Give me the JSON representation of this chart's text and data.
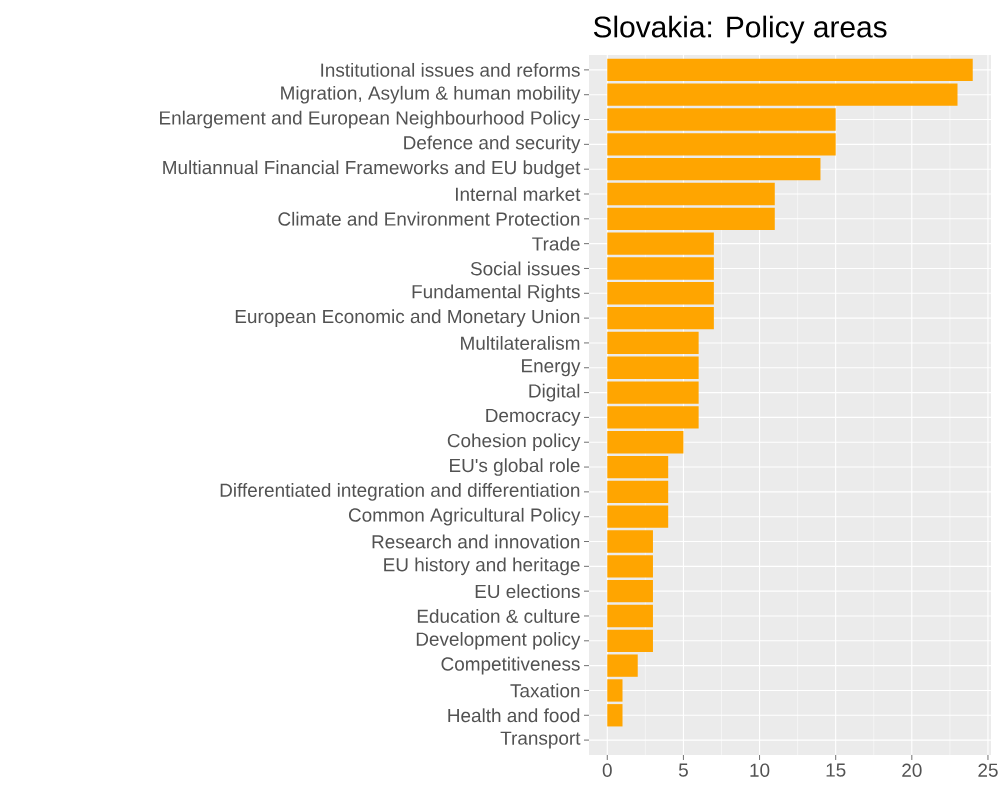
{
  "chart_data": {
    "type": "bar",
    "orientation": "horizontal",
    "title": "Slovakia: Policy areas",
    "categories": [
      "Institutional issues and reforms",
      "Migration, Asylum & human mobility",
      "Enlargement and European Neighbourhood Policy",
      "Defence and security",
      "Multiannual Financial Frameworks and EU budget",
      "Internal market",
      "Climate and Environment Protection",
      "Trade",
      "Social issues",
      "Fundamental Rights",
      "European Economic and Monetary Union",
      "Multilateralism",
      "Energy",
      "Digital",
      "Democracy",
      "Cohesion policy",
      "EU's global role",
      "Differentiated integration and differentiation",
      "Common Agricultural Policy",
      "Research and innovation",
      "EU history and heritage",
      "EU elections",
      "Education & culture",
      "Development policy",
      "Competitiveness",
      "Taxation",
      "Health and food",
      "Transport"
    ],
    "values": [
      24,
      23,
      15,
      15,
      14,
      11,
      11,
      7,
      7,
      7,
      7,
      6,
      6,
      6,
      6,
      5,
      4,
      4,
      4,
      3,
      3,
      3,
      3,
      3,
      2,
      1,
      1,
      0
    ],
    "color": "#ffa500",
    "xlim": [
      -1.2,
      25.2
    ],
    "xticks": [
      0,
      5,
      10,
      15,
      20,
      25
    ],
    "grid": true
  }
}
